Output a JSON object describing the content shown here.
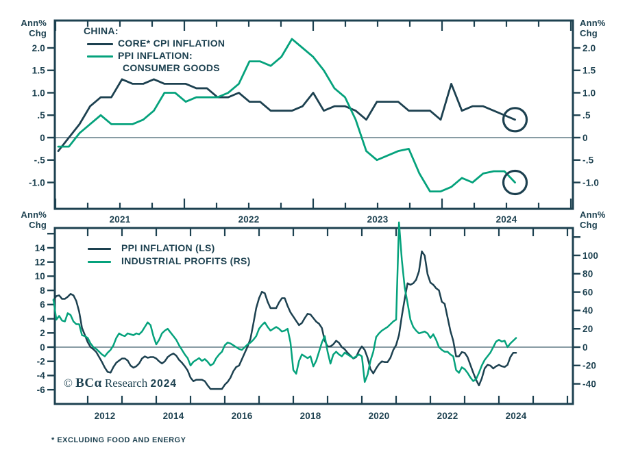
{
  "theme": {
    "navy": "#1d4150",
    "green": "#05a27c",
    "zero_line_color": "#41606e",
    "background": "#ffffff"
  },
  "axis_unit": {
    "line1": "Ann%",
    "line2": "Chg"
  },
  "watermark": {
    "copyright": "© ",
    "logo": "BCα",
    "text": " Research ",
    "year": "2024"
  },
  "footnote": "* EXCLUDING FOOD AND ENERGY",
  "chart_data": [
    {
      "type": "line",
      "panel": "top",
      "title": "CHINA:",
      "x_start": "2021-01",
      "x_freq": "monthly",
      "x_year_labels": [
        "2021",
        "2022",
        "2023",
        "2024"
      ],
      "y_axis": {
        "sides": "both",
        "unit": "Ann% Chg",
        "tick_labels": [
          "2.0",
          "1.5",
          "1.0",
          ".5",
          "0",
          "-.5",
          "-1.0"
        ],
        "tick_values": [
          2.0,
          1.5,
          1.0,
          0.5,
          0,
          -0.5,
          -1.0
        ],
        "ylim": [
          -1.35,
          2.35
        ]
      },
      "zero_line": true,
      "grid": false,
      "legend_position": "top-left-inside",
      "end_markers": "circle",
      "series": [
        {
          "name": "CORE* CPI INFLATION",
          "legend_lines": [
            "CORE* CPI INFLATION"
          ],
          "color": "#1d4150",
          "values": [
            -0.3,
            0.0,
            0.3,
            0.7,
            0.9,
            0.9,
            1.3,
            1.2,
            1.2,
            1.3,
            1.2,
            1.2,
            1.2,
            1.1,
            1.1,
            0.9,
            0.9,
            1.0,
            0.8,
            0.8,
            0.6,
            0.6,
            0.6,
            0.7,
            1.0,
            0.6,
            0.7,
            0.7,
            0.6,
            0.4,
            0.8,
            0.8,
            0.8,
            0.6,
            0.6,
            0.6,
            0.4,
            1.2,
            0.6,
            0.7,
            0.7,
            0.6,
            0.5,
            0.4
          ]
        },
        {
          "name": "PPI INFLATION: CONSUMER GOODS",
          "legend_lines": [
            "PPI INFLATION:",
            "CONSUMER GOODS"
          ],
          "color": "#05a27c",
          "values": [
            -0.2,
            -0.2,
            0.1,
            0.3,
            0.5,
            0.3,
            0.3,
            0.3,
            0.4,
            0.6,
            1.0,
            1.0,
            0.8,
            0.9,
            0.9,
            0.9,
            1.0,
            1.2,
            1.7,
            1.7,
            1.6,
            1.8,
            2.2,
            2.0,
            1.8,
            1.5,
            1.1,
            0.9,
            0.4,
            -0.3,
            -0.5,
            -0.4,
            -0.3,
            -0.25,
            -0.8,
            -1.2,
            -1.2,
            -1.1,
            -0.9,
            -1.0,
            -0.8,
            -0.75,
            -0.75,
            -1.0
          ]
        }
      ]
    },
    {
      "type": "line",
      "panel": "bottom",
      "x_start": "2011-01",
      "x_freq": "monthly",
      "x_year_labels": [
        "2012",
        "2014",
        "2016",
        "2018",
        "2020",
        "2022",
        "2024"
      ],
      "left_axis": {
        "unit": "Ann% Chg",
        "tick_labels": [
          "14",
          "12",
          "10",
          "8",
          "6",
          "4",
          "2",
          "0",
          "-2",
          "-4",
          "-6"
        ],
        "tick_values": [
          14,
          12,
          10,
          8,
          6,
          4,
          2,
          0,
          -2,
          -4,
          -6
        ]
      },
      "right_axis": {
        "unit": "Ann% Chg",
        "tick_labels": [
          "100",
          "80",
          "60",
          "40",
          "20",
          "0",
          "-20",
          "-40"
        ],
        "tick_values": [
          100,
          80,
          60,
          40,
          20,
          0,
          -20,
          -40
        ]
      },
      "zero_line": true,
      "grid": false,
      "legend_position": "top-left-inside",
      "series": [
        {
          "name": "PPI INFLATION (LS)",
          "axis": "left",
          "color": "#1d4150",
          "values": [
            6.6,
            7.2,
            7.3,
            6.8,
            6.8,
            7.1,
            7.5,
            7.3,
            6.5,
            5.0,
            2.7,
            1.7,
            0.7,
            0.0,
            -0.3,
            -0.7,
            -1.4,
            -2.1,
            -2.9,
            -3.5,
            -3.6,
            -2.8,
            -2.2,
            -1.9,
            -1.6,
            -1.6,
            -1.9,
            -2.6,
            -2.9,
            -2.7,
            -2.3,
            -1.6,
            -1.3,
            -1.5,
            -1.4,
            -1.4,
            -1.6,
            -2.0,
            -2.3,
            -2.0,
            -1.4,
            -1.1,
            -0.9,
            -1.2,
            -1.8,
            -2.2,
            -2.7,
            -3.3,
            -4.3,
            -4.8,
            -4.6,
            -4.6,
            -4.6,
            -4.8,
            -5.4,
            -5.9,
            -5.9,
            -5.9,
            -5.9,
            -5.9,
            -5.3,
            -4.9,
            -4.3,
            -3.4,
            -2.8,
            -2.6,
            -1.7,
            -0.8,
            0.1,
            1.2,
            3.3,
            5.5,
            6.9,
            7.8,
            7.6,
            6.4,
            5.5,
            5.5,
            5.5,
            6.3,
            6.9,
            6.9,
            5.8,
            4.9,
            4.3,
            3.7,
            3.1,
            3.4,
            4.1,
            4.7,
            4.6,
            4.1,
            3.6,
            3.3,
            2.7,
            0.9,
            0.1,
            0.1,
            0.4,
            0.9,
            0.6,
            0.0,
            -0.3,
            -0.8,
            -1.2,
            -1.6,
            -1.4,
            -0.5,
            0.1,
            -0.4,
            -1.5,
            -3.1,
            -3.7,
            -3.0,
            -2.4,
            -2.0,
            -2.1,
            -2.1,
            -1.5,
            -0.4,
            0.3,
            1.7,
            4.4,
            6.8,
            9.0,
            8.8,
            9.0,
            9.5,
            10.7,
            13.5,
            12.9,
            10.3,
            9.1,
            8.8,
            8.3,
            8.0,
            6.4,
            6.1,
            4.2,
            2.3,
            0.9,
            -1.3,
            -1.3,
            -0.7,
            -0.8,
            -1.4,
            -2.5,
            -3.6,
            -4.6,
            -5.4,
            -4.4,
            -3.0,
            -2.5,
            -2.6,
            -3.0,
            -2.7,
            -2.5,
            -2.7,
            -2.8,
            -2.5,
            -1.4,
            -0.8,
            -0.8
          ]
        },
        {
          "name": "INDUSTRIAL PROFITS (RS)",
          "axis": "right",
          "color": "#05a27c",
          "values": [
            52,
            30,
            34,
            29,
            28,
            37,
            35,
            28,
            25,
            25,
            13,
            12,
            10,
            4,
            0,
            -2,
            -5,
            -8,
            -10,
            -6,
            -3,
            2,
            10,
            15,
            13,
            12,
            15,
            14,
            13,
            15,
            14,
            17,
            22,
            27,
            24,
            12,
            3,
            8,
            15,
            18,
            20,
            16,
            12,
            8,
            2,
            -3,
            -8,
            -12,
            -20,
            -16,
            -14,
            -12,
            -15,
            -13,
            -16,
            -20,
            -18,
            -12,
            -8,
            -5,
            2,
            5,
            4,
            2,
            0,
            -2,
            -3,
            0,
            3,
            5,
            8,
            12,
            20,
            24,
            27,
            22,
            18,
            20,
            22,
            20,
            17,
            18,
            20,
            5,
            -25,
            -29,
            -15,
            -8,
            -10,
            -12,
            -10,
            -21,
            -15,
            -5,
            5,
            12,
            -5,
            -18,
            -8,
            -5,
            -8,
            -10,
            -6,
            -8,
            -10,
            -12,
            -10,
            -8,
            -10,
            -38,
            -30,
            -15,
            -5,
            11,
            15,
            18,
            20,
            22,
            25,
            28,
            30,
            136,
            95,
            65,
            48,
            30,
            22,
            18,
            15,
            16,
            17,
            15,
            10,
            14,
            8,
            0,
            -3,
            -5,
            -5,
            -8,
            -10,
            -25,
            -28,
            -22,
            -24,
            -28,
            -33,
            -37,
            -35,
            -28,
            -20,
            -14,
            -10,
            -6,
            0,
            6,
            8,
            6,
            7,
            0,
            4,
            7,
            10
          ]
        }
      ]
    }
  ]
}
